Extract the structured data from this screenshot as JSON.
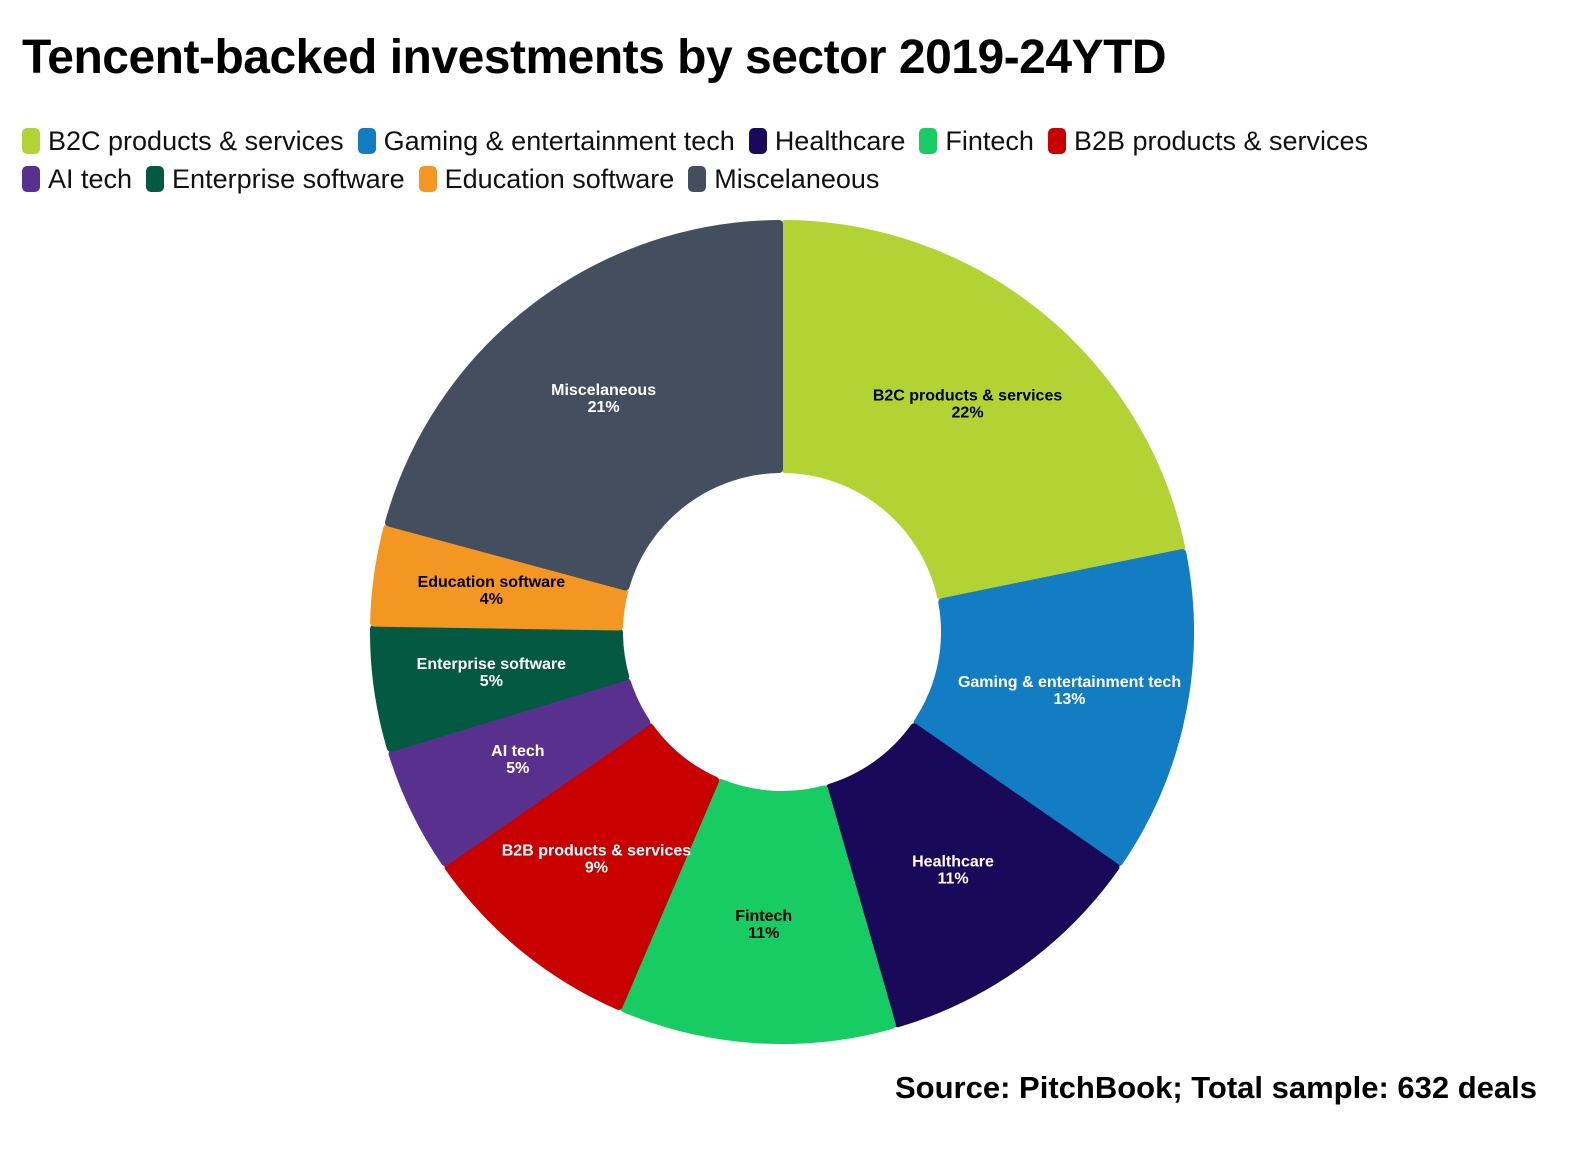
{
  "title": "Tencent-backed investments by sector 2019-24YTD",
  "source": "Source: PitchBook; Total sample: 632 deals",
  "legend": {
    "rows": [
      [
        {
          "label": "B2C products & services",
          "color": "#b3d335"
        },
        {
          "label": "Gaming & entertainment tech",
          "color": "#127dc2"
        },
        {
          "label": "Healthcare",
          "color": "#180a58"
        },
        {
          "label": "Fintech",
          "color": "#17cc63"
        },
        {
          "label": "B2B products & services",
          "color": "#c80000"
        }
      ],
      [
        {
          "label": "AI tech",
          "color": "#58318f"
        },
        {
          "label": "Enterprise software",
          "color": "#035a40"
        },
        {
          "label": "Education software",
          "color": "#f39722"
        },
        {
          "label": "Miscelaneous",
          "color": "#434f5f"
        }
      ]
    ]
  },
  "chart_data": {
    "type": "pie",
    "subtype": "donut",
    "title": "Tencent-backed investments by sector 2019-24YTD",
    "categories": [
      "B2C products & services",
      "Gaming & entertainment tech",
      "Healthcare",
      "Fintech",
      "B2B products & services",
      "AI tech",
      "Enterprise software",
      "Education software",
      "Miscelaneous"
    ],
    "values": [
      22,
      13,
      11,
      11,
      9,
      5,
      5,
      4,
      21
    ],
    "unit": "%",
    "colors": [
      "#b3d335",
      "#127dc2",
      "#180a58",
      "#17cc63",
      "#c80000",
      "#58318f",
      "#035a40",
      "#f39722",
      "#434f5f"
    ],
    "label_colors": [
      "#000000",
      "#ffffff",
      "#ffffff",
      "#000000",
      "#ffffff",
      "#ffffff",
      "#ffffff",
      "#000000",
      "#ffffff"
    ],
    "start_angle_deg": 0,
    "direction": "clockwise",
    "legend_position": "top",
    "total_sample": 632,
    "source": "PitchBook"
  }
}
